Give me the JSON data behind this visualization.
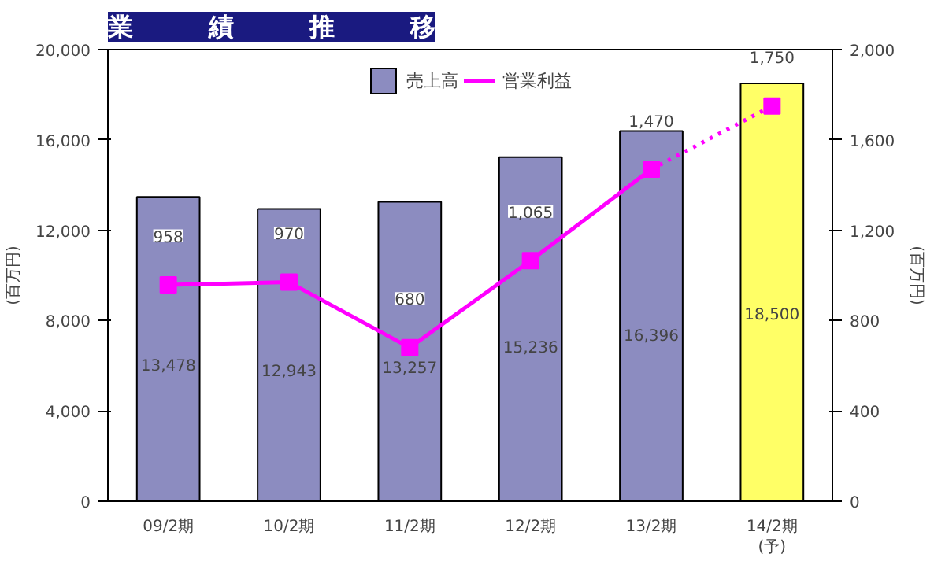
{
  "chart_data": {
    "type": "bar",
    "title": "業　　　績　　　推　　　移",
    "ylabel": "(百万円)",
    "y2label": "(百万円)",
    "categories": [
      "09/2期",
      "10/2期",
      "11/2期",
      "12/2期",
      "13/2期",
      "14/2期\n(予)"
    ],
    "series": [
      {
        "name": "売上高",
        "colors": [
          "#8c8cc0",
          "#8c8cc0",
          "#8c8cc0",
          "#8c8cc0",
          "#8c8cc0",
          "#ffff66"
        ],
        "values": [
          13478,
          12943,
          13257,
          15236,
          16396,
          18500
        ],
        "value_labels": [
          "13,478",
          "12,943",
          "13,257",
          "15,236",
          "16,396",
          "18,500"
        ]
      },
      {
        "name": "営業利益",
        "type": "line",
        "axis": "y2",
        "color": "#ff00ff",
        "line_style": "solid",
        "values": [
          958,
          970,
          680,
          1065,
          1470,
          null
        ],
        "value_labels": [
          "958",
          "970",
          "680",
          "1,065",
          "1,470",
          null
        ]
      },
      {
        "type": "line",
        "axis": "y2",
        "color": "#ff00ff",
        "line_style": "dotted",
        "values": [
          null,
          null,
          null,
          null,
          1470,
          1750
        ],
        "value_labels": [
          null,
          null,
          null,
          null,
          null,
          "1,750"
        ]
      }
    ],
    "ylim": [
      0,
      20000
    ],
    "yticks": [
      0,
      {
        "value": 4000,
        "label": "4,000"
      },
      {
        "value": 8000,
        "label": "8,000"
      },
      {
        "value": 12000,
        "label": "12,000"
      },
      {
        "value": 16000,
        "label": "16,000"
      },
      {
        "value": 20000,
        "label": "20,000"
      }
    ],
    "y2lim": [
      0,
      2000
    ],
    "y2ticks": [
      0,
      400,
      800,
      {
        "value": 1200,
        "label": "1,200"
      },
      {
        "value": 1600,
        "label": "1,600"
      },
      {
        "value": 2000,
        "label": "2,000"
      }
    ],
    "marker": "square",
    "legend": "top",
    "grid": false
  }
}
